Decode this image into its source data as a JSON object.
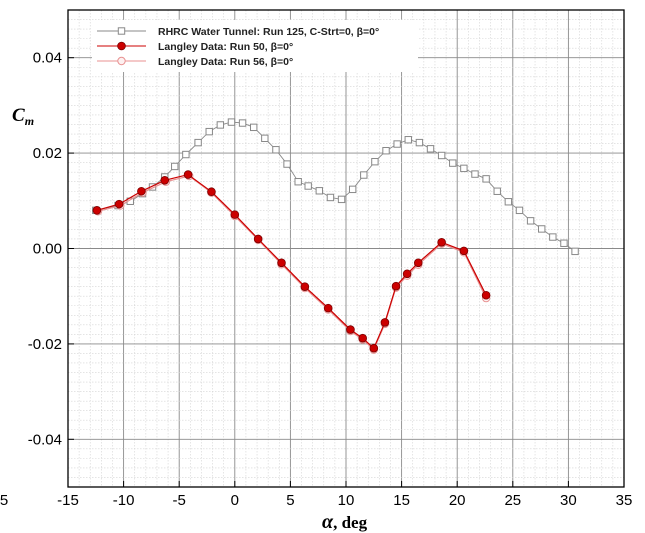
{
  "chart_data": {
    "type": "line",
    "xlabel": {
      "symbol": "α",
      "rest": ", deg"
    },
    "ylabel": {
      "main": "C",
      "sub": "m"
    },
    "xlim": [
      -15,
      35
    ],
    "ylim": [
      -0.05,
      0.05
    ],
    "x_ticks": [
      {
        "v": -15,
        "label": "-15"
      },
      {
        "v": -10,
        "label": "-10"
      },
      {
        "v": -5,
        "label": "-5"
      },
      {
        "v": 0,
        "label": "0"
      },
      {
        "v": 5,
        "label": "5"
      },
      {
        "v": 10,
        "label": "10"
      },
      {
        "v": 15,
        "label": "15"
      },
      {
        "v": 20,
        "label": "20"
      },
      {
        "v": 25,
        "label": "25"
      },
      {
        "v": 30,
        "label": "30"
      },
      {
        "v": 35,
        "label": "35"
      }
    ],
    "cut_tick_label": "5",
    "y_ticks": [
      {
        "v": 0.04,
        "label": "0.04"
      },
      {
        "v": 0.02,
        "label": "0.02"
      },
      {
        "v": 0.0,
        "label": "0.00"
      },
      {
        "v": -0.02,
        "label": "-0.02"
      },
      {
        "v": -0.04,
        "label": "-0.04"
      }
    ],
    "grid": true,
    "legend_position": "top-left",
    "series": [
      {
        "name": "RHRC Water Tunnel: Run 125, C-Strt=0, β=0°",
        "color": "#888888",
        "marker": "open-square",
        "points": [
          [
            -12.5,
            0.008
          ],
          [
            -10.5,
            0.009
          ],
          [
            -9.4,
            0.0099
          ],
          [
            -8.3,
            0.0115
          ],
          [
            -7.4,
            0.0129
          ],
          [
            -6.3,
            0.015
          ],
          [
            -5.4,
            0.0172
          ],
          [
            -4.4,
            0.0197
          ],
          [
            -3.3,
            0.0222
          ],
          [
            -2.3,
            0.0245
          ],
          [
            -1.3,
            0.0259
          ],
          [
            -0.3,
            0.0265
          ],
          [
            0.7,
            0.0263
          ],
          [
            1.7,
            0.0254
          ],
          [
            2.7,
            0.0231
          ],
          [
            3.7,
            0.0207
          ],
          [
            4.7,
            0.0177
          ],
          [
            5.7,
            0.014
          ],
          [
            6.6,
            0.0131
          ],
          [
            7.6,
            0.0121
          ],
          [
            8.6,
            0.0107
          ],
          [
            9.6,
            0.0103
          ],
          [
            10.6,
            0.0124
          ],
          [
            11.6,
            0.0154
          ],
          [
            12.6,
            0.0182
          ],
          [
            13.6,
            0.0205
          ],
          [
            14.6,
            0.0219
          ],
          [
            15.6,
            0.0228
          ],
          [
            16.6,
            0.0222
          ],
          [
            17.6,
            0.0209
          ],
          [
            18.6,
            0.0195
          ],
          [
            19.6,
            0.0179
          ],
          [
            20.6,
            0.0168
          ],
          [
            21.6,
            0.0156
          ],
          [
            22.6,
            0.0146
          ],
          [
            23.6,
            0.012
          ],
          [
            24.6,
            0.0098
          ],
          [
            25.6,
            0.008
          ],
          [
            26.6,
            0.0058
          ],
          [
            27.6,
            0.0041
          ],
          [
            28.6,
            0.0024
          ],
          [
            29.6,
            0.0011
          ],
          [
            30.6,
            -0.0006
          ]
        ]
      },
      {
        "name": "Langley Data: Run 50, β=0°",
        "color": "#cc0000",
        "marker": "filled-circle",
        "points": [
          [
            -12.4,
            0.008
          ],
          [
            -10.4,
            0.0093
          ],
          [
            -8.4,
            0.012
          ],
          [
            -6.3,
            0.0143
          ],
          [
            -4.2,
            0.0155
          ],
          [
            -2.1,
            0.0119
          ],
          [
            0.0,
            0.0071
          ],
          [
            2.1,
            0.002
          ],
          [
            4.2,
            -0.003
          ],
          [
            6.3,
            -0.008
          ],
          [
            8.4,
            -0.0125
          ],
          [
            10.4,
            -0.017
          ],
          [
            11.5,
            -0.0188
          ],
          [
            12.5,
            -0.0209
          ],
          [
            13.5,
            -0.0155
          ],
          [
            14.5,
            -0.0079
          ],
          [
            15.5,
            -0.0053
          ],
          [
            16.5,
            -0.003
          ],
          [
            18.6,
            0.0013
          ],
          [
            20.6,
            -0.0005
          ],
          [
            22.6,
            -0.0098
          ]
        ]
      },
      {
        "name": "Langley Data: Run  56, β=0°",
        "color": "#e89090",
        "marker": "open-circle",
        "points": [
          [
            -12.3,
            0.0078
          ],
          [
            -10.3,
            0.009
          ],
          [
            -8.3,
            0.0117
          ],
          [
            -6.2,
            0.014
          ],
          [
            -4.1,
            0.0152
          ],
          [
            -2.1,
            0.0117
          ],
          [
            0.0,
            0.0068
          ],
          [
            2.1,
            0.0018
          ],
          [
            4.2,
            -0.0033
          ],
          [
            6.3,
            -0.0083
          ],
          [
            8.4,
            -0.0128
          ],
          [
            10.4,
            -0.0173
          ],
          [
            11.5,
            -0.0191
          ],
          [
            12.5,
            -0.0212
          ],
          [
            13.5,
            -0.0158
          ],
          [
            14.5,
            -0.0082
          ],
          [
            15.5,
            -0.0057
          ],
          [
            16.5,
            -0.0034
          ],
          [
            18.6,
            0.001
          ],
          [
            20.6,
            -0.0008
          ],
          [
            22.6,
            -0.0104
          ]
        ]
      }
    ]
  }
}
